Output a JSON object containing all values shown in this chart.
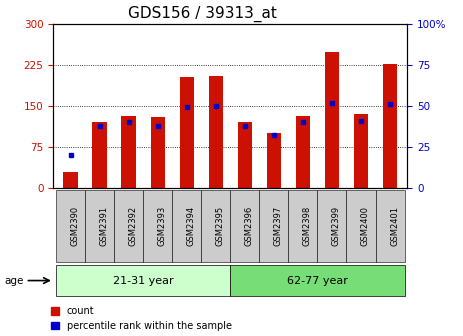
{
  "title": "GDS156 / 39313_at",
  "samples": [
    "GSM2390",
    "GSM2391",
    "GSM2392",
    "GSM2393",
    "GSM2394",
    "GSM2395",
    "GSM2396",
    "GSM2397",
    "GSM2398",
    "GSM2399",
    "GSM2400",
    "GSM2401"
  ],
  "count_values": [
    30,
    120,
    132,
    130,
    202,
    205,
    120,
    100,
    132,
    248,
    135,
    226
  ],
  "percentile_values": [
    20,
    38,
    40,
    38,
    49,
    50,
    38,
    32,
    40,
    52,
    41,
    51
  ],
  "red_color": "#cc1100",
  "blue_color": "#0000cc",
  "ylim_left": [
    0,
    300
  ],
  "ylim_right": [
    0,
    100
  ],
  "yticks_left": [
    0,
    75,
    150,
    225,
    300
  ],
  "yticks_right": [
    0,
    25,
    50,
    75,
    100
  ],
  "group1_label": "21-31 year",
  "group2_label": "62-77 year",
  "xlabel": "age",
  "legend_count": "count",
  "legend_percentile": "percentile rank within the sample",
  "bar_width": 0.5,
  "grid_color": "black",
  "title_fontsize": 11,
  "tick_label_color_left": "#cc1100",
  "tick_label_color_right": "#0000cc",
  "group_bg_color1": "#ccffcc",
  "group_bg_color2": "#77dd77",
  "xtick_bg_color": "#cccccc"
}
